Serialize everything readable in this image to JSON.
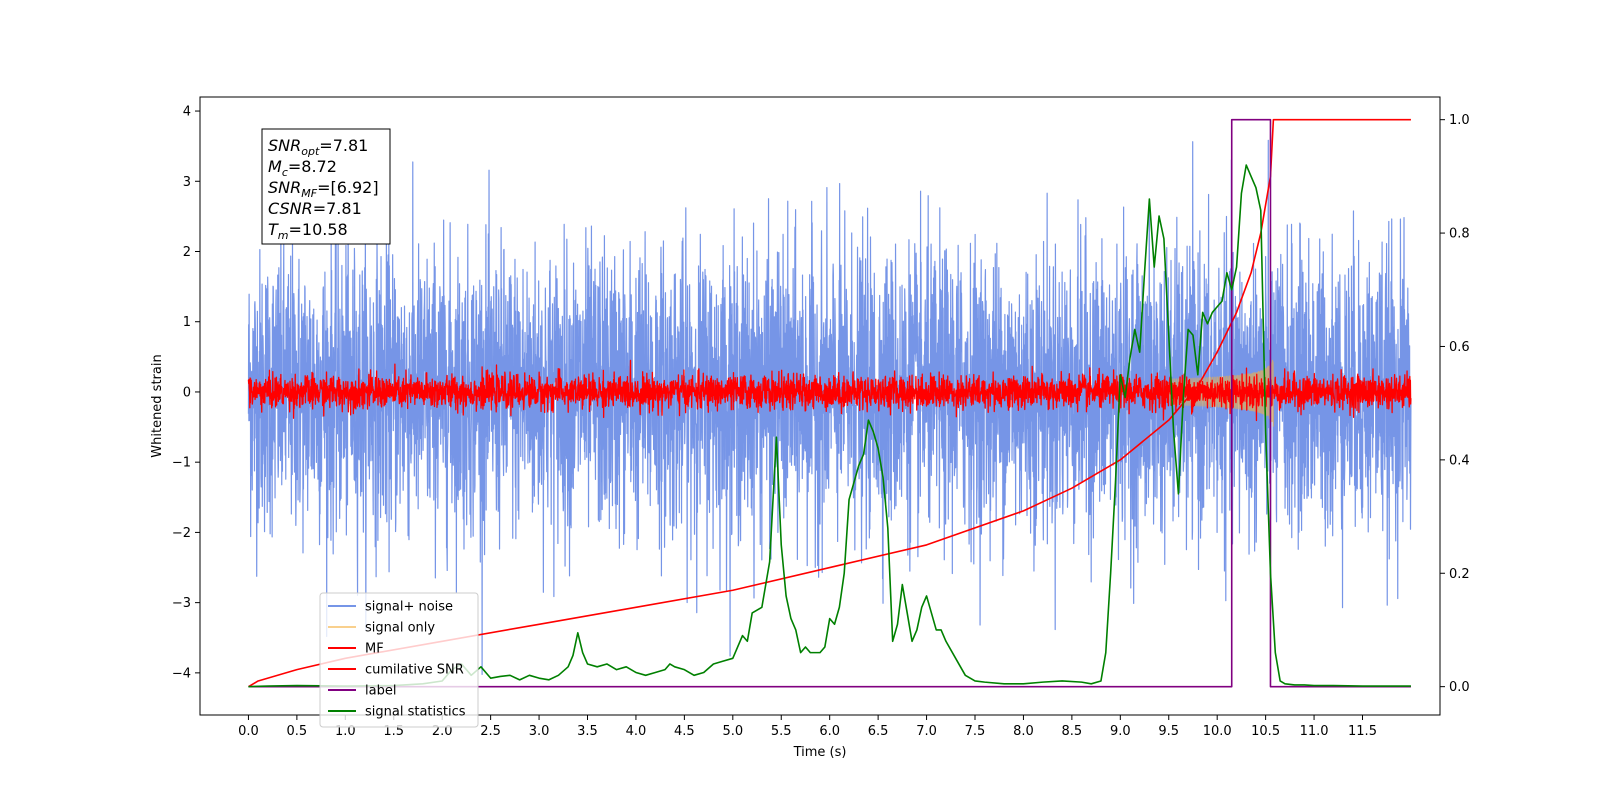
{
  "chart_data": {
    "type": "line",
    "xlabel": "Time (s)",
    "ylabel": "Whitened strain",
    "xlim": [
      -0.5,
      12.3
    ],
    "ylim": [
      -4.6,
      4.2
    ],
    "y2lim": [
      -0.05,
      1.04
    ],
    "x_ticks": [
      0.0,
      0.5,
      1.0,
      1.5,
      2.0,
      2.5,
      3.0,
      3.5,
      4.0,
      4.5,
      5.0,
      5.5,
      6.0,
      6.5,
      7.0,
      7.5,
      8.0,
      8.5,
      9.0,
      9.5,
      10.0,
      10.5,
      11.0,
      11.5
    ],
    "x_tick_labels": [
      "0.0",
      "0.5",
      "1.0",
      "1.5",
      "2.0",
      "2.5",
      "3.0",
      "3.5",
      "4.0",
      "4.5",
      "5.0",
      "5.5",
      "6.0",
      "6.5",
      "7.0",
      "7.5",
      "8.0",
      "8.5",
      "9.0",
      "9.5",
      "10.0",
      "10.5",
      "11.0",
      "11.5"
    ],
    "y_ticks": [
      4,
      3,
      2,
      1,
      0,
      -1,
      -2,
      -3,
      -4
    ],
    "y_tick_labels": [
      "4",
      "3",
      "2",
      "1",
      "0",
      "−1",
      "−2",
      "−3",
      "−4"
    ],
    "y2_ticks": [
      1.0,
      0.8,
      0.6,
      0.4,
      0.2,
      0.0
    ],
    "y2_tick_labels": [
      "1.0",
      "0.8",
      "0.6",
      "0.4",
      "0.2",
      "0.0"
    ],
    "legend_position": "lower-left",
    "grid": false,
    "series": [
      {
        "name": "signal+ noise",
        "axis": "left",
        "color": "#6f8fe6",
        "kind": "noise",
        "x_range": [
          0.0,
          12.0
        ],
        "amplitude": 1.0,
        "peak": 3.8
      },
      {
        "name": "signal only",
        "axis": "left",
        "color": "#f5b041",
        "kind": "chirp",
        "x_range": [
          9.5,
          10.58
        ],
        "peak_amplitude": 0.5
      },
      {
        "name": "MF",
        "axis": "left",
        "color": "#ff0000",
        "kind": "noise",
        "x_range": [
          0.0,
          12.0
        ],
        "amplitude": 0.12,
        "peak": 0.45
      },
      {
        "name": "cumilative SNR",
        "axis": "right",
        "color": "#ff0000",
        "x": [
          0.0,
          0.1,
          0.5,
          1.0,
          2.0,
          3.0,
          4.0,
          5.0,
          6.0,
          7.0,
          8.0,
          8.5,
          9.0,
          9.5,
          9.8,
          10.0,
          10.2,
          10.35,
          10.45,
          10.55,
          10.58,
          12.0
        ],
        "y": [
          0.0,
          0.01,
          0.03,
          0.05,
          0.08,
          0.11,
          0.14,
          0.17,
          0.21,
          0.25,
          0.31,
          0.35,
          0.4,
          0.47,
          0.53,
          0.59,
          0.66,
          0.73,
          0.8,
          0.9,
          1.0,
          1.0
        ]
      },
      {
        "name": "label",
        "axis": "right",
        "color": "#800080",
        "x": [
          0.0,
          10.15,
          10.15,
          10.55,
          10.55,
          12.0
        ],
        "y": [
          0.0,
          0.0,
          1.0,
          1.0,
          0.0,
          0.0
        ]
      },
      {
        "name": "signal statistics",
        "axis": "right",
        "color": "#008000",
        "x": [
          0.0,
          0.2,
          0.5,
          1.0,
          1.5,
          1.8,
          2.0,
          2.1,
          2.2,
          2.3,
          2.4,
          2.5,
          2.6,
          2.7,
          2.8,
          2.9,
          3.0,
          3.1,
          3.2,
          3.3,
          3.35,
          3.4,
          3.45,
          3.5,
          3.6,
          3.7,
          3.8,
          3.9,
          4.0,
          4.1,
          4.2,
          4.3,
          4.35,
          4.4,
          4.5,
          4.6,
          4.7,
          4.8,
          4.9,
          5.0,
          5.1,
          5.15,
          5.2,
          5.3,
          5.38,
          5.45,
          5.5,
          5.55,
          5.6,
          5.65,
          5.7,
          5.75,
          5.8,
          5.9,
          5.95,
          6.0,
          6.05,
          6.1,
          6.15,
          6.2,
          6.25,
          6.3,
          6.35,
          6.4,
          6.45,
          6.5,
          6.55,
          6.6,
          6.65,
          6.7,
          6.75,
          6.8,
          6.85,
          6.9,
          6.95,
          7.0,
          7.05,
          7.1,
          7.15,
          7.2,
          7.3,
          7.4,
          7.5,
          7.6,
          7.8,
          8.0,
          8.2,
          8.4,
          8.6,
          8.7,
          8.8,
          8.85,
          8.9,
          8.95,
          9.0,
          9.05,
          9.1,
          9.15,
          9.2,
          9.25,
          9.3,
          9.35,
          9.4,
          9.45,
          9.5,
          9.55,
          9.6,
          9.65,
          9.7,
          9.75,
          9.8,
          9.85,
          9.9,
          9.95,
          10.0,
          10.05,
          10.1,
          10.15,
          10.2,
          10.25,
          10.3,
          10.35,
          10.4,
          10.45,
          10.5,
          10.55,
          10.6,
          10.65,
          10.7,
          10.8,
          10.9,
          11.0,
          11.2,
          11.5,
          11.8,
          12.0
        ],
        "y": [
          0.0,
          0.001,
          0.002,
          0.001,
          0.002,
          0.005,
          0.01,
          0.03,
          0.04,
          0.02,
          0.035,
          0.015,
          0.018,
          0.02,
          0.012,
          0.02,
          0.015,
          0.012,
          0.02,
          0.035,
          0.055,
          0.095,
          0.06,
          0.04,
          0.035,
          0.04,
          0.03,
          0.035,
          0.025,
          0.02,
          0.025,
          0.03,
          0.04,
          0.035,
          0.03,
          0.02,
          0.025,
          0.04,
          0.045,
          0.05,
          0.09,
          0.08,
          0.13,
          0.14,
          0.22,
          0.44,
          0.25,
          0.16,
          0.12,
          0.1,
          0.06,
          0.07,
          0.06,
          0.06,
          0.07,
          0.12,
          0.11,
          0.14,
          0.2,
          0.33,
          0.36,
          0.39,
          0.41,
          0.47,
          0.45,
          0.42,
          0.37,
          0.28,
          0.08,
          0.11,
          0.18,
          0.13,
          0.08,
          0.1,
          0.14,
          0.16,
          0.13,
          0.1,
          0.1,
          0.08,
          0.05,
          0.02,
          0.01,
          0.008,
          0.005,
          0.005,
          0.008,
          0.01,
          0.008,
          0.005,
          0.01,
          0.06,
          0.2,
          0.36,
          0.55,
          0.51,
          0.58,
          0.63,
          0.59,
          0.73,
          0.86,
          0.74,
          0.83,
          0.79,
          0.62,
          0.45,
          0.34,
          0.51,
          0.63,
          0.62,
          0.55,
          0.66,
          0.64,
          0.66,
          0.67,
          0.68,
          0.73,
          0.7,
          0.74,
          0.87,
          0.92,
          0.9,
          0.88,
          0.84,
          0.45,
          0.2,
          0.06,
          0.01,
          0.005,
          0.003,
          0.003,
          0.002,
          0.002,
          0.001,
          0.001,
          0.001
        ]
      }
    ],
    "annotation": {
      "lines": [
        {
          "main": "SNR",
          "sub": "opt",
          "value": "=7.81"
        },
        {
          "main": "M",
          "sub": "c",
          "value": "=8.72"
        },
        {
          "main": "SNR",
          "sub": "MF",
          "value": "=[6.92]"
        },
        {
          "main": "CSNR",
          "sub": "",
          "value": "=7.81"
        },
        {
          "main": "T",
          "sub": "m",
          "value": "=10.58"
        }
      ]
    }
  }
}
